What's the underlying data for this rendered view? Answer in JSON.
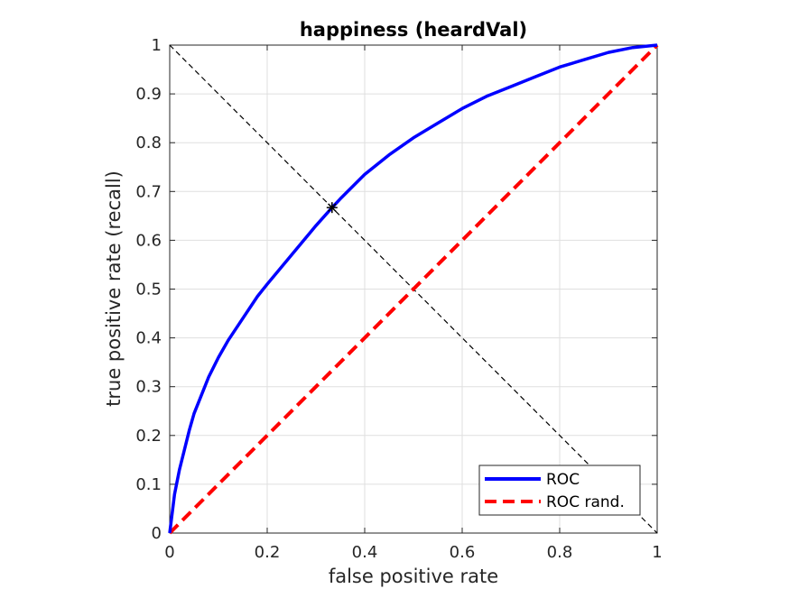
{
  "chart_data": {
    "type": "line",
    "title": "happiness (heardVal)",
    "xlabel": "false positive rate",
    "ylabel": "true positive rate (recall)",
    "xlim": [
      0,
      1
    ],
    "ylim": [
      0,
      1
    ],
    "xticks": [
      "0",
      "0.2",
      "0.4",
      "0.6",
      "0.8",
      "1"
    ],
    "yticks": [
      "0",
      "0.1",
      "0.2",
      "0.3",
      "0.4",
      "0.5",
      "0.6",
      "0.7",
      "0.8",
      "0.9",
      "1"
    ],
    "grid": true,
    "legend_position": "bottom-right",
    "series": [
      {
        "name": "ROC",
        "color": "#0000ff",
        "style": "solid",
        "x": [
          0,
          0.01,
          0.02,
          0.03,
          0.04,
          0.05,
          0.06,
          0.08,
          0.1,
          0.12,
          0.15,
          0.18,
          0.2,
          0.25,
          0.3,
          0.333,
          0.35,
          0.4,
          0.45,
          0.5,
          0.55,
          0.6,
          0.65,
          0.7,
          0.75,
          0.8,
          0.85,
          0.9,
          0.95,
          1.0
        ],
        "y": [
          0,
          0.08,
          0.13,
          0.17,
          0.21,
          0.245,
          0.27,
          0.32,
          0.36,
          0.395,
          0.44,
          0.485,
          0.51,
          0.57,
          0.63,
          0.667,
          0.685,
          0.735,
          0.775,
          0.81,
          0.84,
          0.87,
          0.895,
          0.915,
          0.935,
          0.955,
          0.97,
          0.985,
          0.995,
          1.0
        ]
      },
      {
        "name": "ROC rand.",
        "color": "#ff0000",
        "style": "dashed",
        "x": [
          0,
          1
        ],
        "y": [
          0,
          1
        ]
      }
    ],
    "reference_line": {
      "color": "#000000",
      "style": "dashed",
      "x": [
        0,
        1
      ],
      "y": [
        1,
        0
      ]
    },
    "marker": {
      "symbol": "*",
      "color": "#000000",
      "x": 0.333,
      "y": 0.667
    }
  }
}
